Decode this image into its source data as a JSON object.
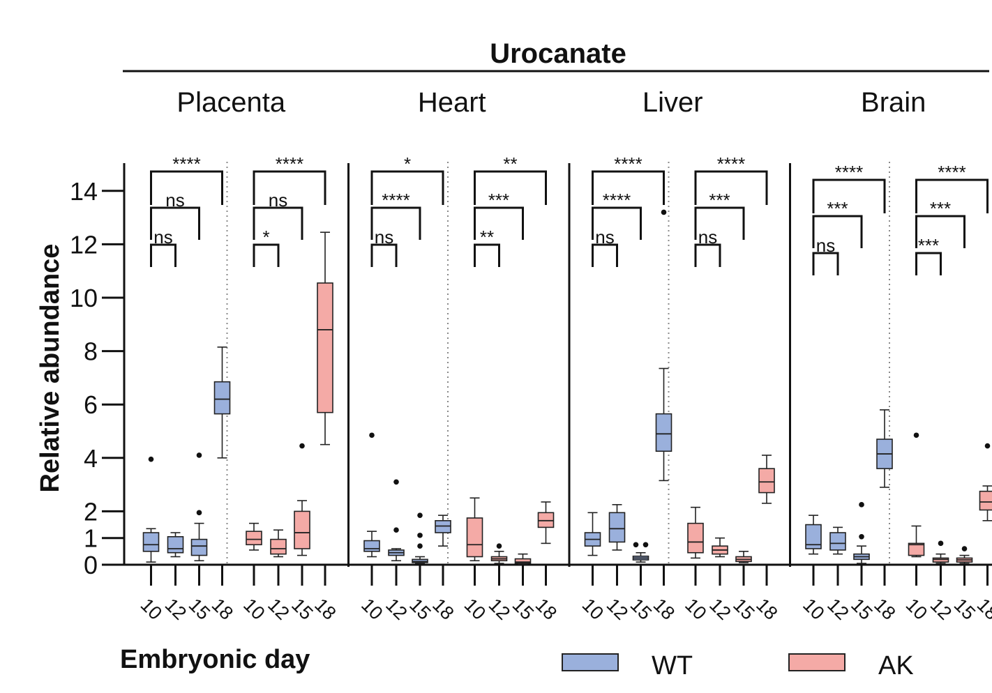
{
  "chart_data": {
    "type": "boxplot",
    "title": "Urocanate",
    "ylabel": "Relative abundance",
    "xlabel": "Embryonic day",
    "ylim": [
      0,
      14.5
    ],
    "yticks": [
      0,
      1,
      2,
      4,
      6,
      8,
      10,
      12,
      14
    ],
    "days": [
      "10",
      "12",
      "15",
      "18"
    ],
    "legend": [
      {
        "name": "WT",
        "color": "#9ab0dc"
      },
      {
        "name": "AK",
        "color": "#f4aaa6"
      }
    ],
    "tissues": [
      {
        "name": "Placenta",
        "groups": [
          {
            "genotype": "WT",
            "boxes": [
              {
                "day": "10",
                "min": 0.1,
                "q1": 0.5,
                "median": 0.75,
                "q3": 1.2,
                "max": 1.35,
                "outliers": [
                  3.95
                ]
              },
              {
                "day": "12",
                "min": 0.3,
                "q1": 0.45,
                "median": 0.6,
                "q3": 1.05,
                "max": 1.2,
                "outliers": []
              },
              {
                "day": "15",
                "min": 0.15,
                "q1": 0.35,
                "median": 0.7,
                "q3": 0.95,
                "max": 1.55,
                "outliers": [
                  1.95,
                  4.1
                ]
              },
              {
                "day": "18",
                "min": 4.0,
                "q1": 5.65,
                "median": 6.2,
                "q3": 6.85,
                "max": 8.15,
                "outliers": []
              }
            ],
            "comparisons": [
              {
                "from": "10",
                "to": "18",
                "label": "****"
              },
              {
                "from": "10",
                "to": "15",
                "label": "ns"
              },
              {
                "from": "10",
                "to": "12",
                "label": "ns"
              }
            ]
          },
          {
            "genotype": "AK",
            "boxes": [
              {
                "day": "10",
                "min": 0.55,
                "q1": 0.75,
                "median": 0.95,
                "q3": 1.25,
                "max": 1.55,
                "outliers": []
              },
              {
                "day": "12",
                "min": 0.3,
                "q1": 0.4,
                "median": 0.6,
                "q3": 0.95,
                "max": 1.3,
                "outliers": []
              },
              {
                "day": "15",
                "min": 0.35,
                "q1": 0.6,
                "median": 1.2,
                "q3": 2.0,
                "max": 2.4,
                "outliers": [
                  4.45
                ]
              },
              {
                "day": "18",
                "min": 4.5,
                "q1": 5.7,
                "median": 8.8,
                "q3": 10.55,
                "max": 12.45,
                "outliers": []
              }
            ],
            "comparisons": [
              {
                "from": "10",
                "to": "18",
                "label": "****"
              },
              {
                "from": "10",
                "to": "15",
                "label": "ns"
              },
              {
                "from": "10",
                "to": "12",
                "label": "*"
              }
            ]
          }
        ]
      },
      {
        "name": "Heart",
        "groups": [
          {
            "genotype": "WT",
            "boxes": [
              {
                "day": "10",
                "min": 0.3,
                "q1": 0.5,
                "median": 0.6,
                "q3": 0.9,
                "max": 1.25,
                "outliers": [
                  4.85
                ]
              },
              {
                "day": "12",
                "min": 0.15,
                "q1": 0.35,
                "median": 0.45,
                "q3": 0.55,
                "max": 0.6,
                "outliers": [
                  1.3,
                  3.1
                ]
              },
              {
                "day": "15",
                "min": 0.05,
                "q1": 0.08,
                "median": 0.12,
                "q3": 0.2,
                "max": 0.3,
                "outliers": [
                  0.7,
                  1.1,
                  1.85
                ]
              },
              {
                "day": "18",
                "min": 0.7,
                "q1": 1.2,
                "median": 1.45,
                "q3": 1.65,
                "max": 1.85,
                "outliers": []
              }
            ],
            "comparisons": [
              {
                "from": "10",
                "to": "18",
                "label": "*"
              },
              {
                "from": "10",
                "to": "15",
                "label": "****"
              },
              {
                "from": "10",
                "to": "12",
                "label": "ns"
              }
            ]
          },
          {
            "genotype": "AK",
            "boxes": [
              {
                "day": "10",
                "min": 0.15,
                "q1": 0.3,
                "median": 0.75,
                "q3": 1.75,
                "max": 2.5,
                "outliers": []
              },
              {
                "day": "12",
                "min": 0.05,
                "q1": 0.15,
                "median": 0.22,
                "q3": 0.3,
                "max": 0.5,
                "outliers": [
                  0.7
                ]
              },
              {
                "day": "15",
                "min": 0.03,
                "q1": 0.06,
                "median": 0.1,
                "q3": 0.22,
                "max": 0.4,
                "outliers": []
              },
              {
                "day": "18",
                "min": 0.8,
                "q1": 1.4,
                "median": 1.65,
                "q3": 1.95,
                "max": 2.35,
                "outliers": []
              }
            ],
            "comparisons": [
              {
                "from": "10",
                "to": "18",
                "label": "**"
              },
              {
                "from": "10",
                "to": "15",
                "label": "***"
              },
              {
                "from": "10",
                "to": "12",
                "label": "**"
              }
            ]
          }
        ]
      },
      {
        "name": "Liver",
        "groups": [
          {
            "genotype": "WT",
            "boxes": [
              {
                "day": "10",
                "min": 0.35,
                "q1": 0.7,
                "median": 0.95,
                "q3": 1.2,
                "max": 1.95,
                "outliers": []
              },
              {
                "day": "12",
                "min": 0.55,
                "q1": 0.85,
                "median": 1.35,
                "q3": 1.95,
                "max": 2.25,
                "outliers": []
              },
              {
                "day": "15",
                "min": 0.1,
                "q1": 0.18,
                "median": 0.25,
                "q3": 0.32,
                "max": 0.45,
                "outliers": [
                  0.75,
                  0.75
                ]
              },
              {
                "day": "18",
                "min": 3.15,
                "q1": 4.25,
                "median": 4.9,
                "q3": 5.65,
                "max": 7.35,
                "outliers": [
                  13.2
                ]
              }
            ],
            "comparisons": [
              {
                "from": "10",
                "to": "18",
                "label": "****"
              },
              {
                "from": "10",
                "to": "15",
                "label": "****"
              },
              {
                "from": "10",
                "to": "12",
                "label": "ns"
              }
            ]
          },
          {
            "genotype": "AK",
            "boxes": [
              {
                "day": "10",
                "min": 0.25,
                "q1": 0.45,
                "median": 0.85,
                "q3": 1.55,
                "max": 2.15,
                "outliers": []
              },
              {
                "day": "12",
                "min": 0.3,
                "q1": 0.4,
                "median": 0.55,
                "q3": 0.7,
                "max": 1.0,
                "outliers": []
              },
              {
                "day": "15",
                "min": 0.08,
                "q1": 0.12,
                "median": 0.2,
                "q3": 0.3,
                "max": 0.5,
                "outliers": []
              },
              {
                "day": "18",
                "min": 2.3,
                "q1": 2.7,
                "median": 3.1,
                "q3": 3.6,
                "max": 4.1,
                "outliers": []
              }
            ],
            "comparisons": [
              {
                "from": "10",
                "to": "18",
                "label": "****"
              },
              {
                "from": "10",
                "to": "15",
                "label": "***"
              },
              {
                "from": "10",
                "to": "12",
                "label": "ns"
              }
            ]
          }
        ]
      },
      {
        "name": "Brain",
        "groups": [
          {
            "genotype": "WT",
            "boxes": [
              {
                "day": "10",
                "min": 0.4,
                "q1": 0.6,
                "median": 0.75,
                "q3": 1.5,
                "max": 1.85,
                "outliers": []
              },
              {
                "day": "12",
                "min": 0.4,
                "q1": 0.55,
                "median": 0.8,
                "q3": 1.2,
                "max": 1.4,
                "outliers": []
              },
              {
                "day": "15",
                "min": 0.05,
                "q1": 0.2,
                "median": 0.3,
                "q3": 0.4,
                "max": 0.7,
                "outliers": [
                  1.05,
                  2.25
                ]
              },
              {
                "day": "18",
                "min": 2.9,
                "q1": 3.6,
                "median": 4.15,
                "q3": 4.7,
                "max": 5.8,
                "outliers": []
              }
            ],
            "comparisons": [
              {
                "from": "10",
                "to": "18",
                "label": "****"
              },
              {
                "from": "10",
                "to": "15",
                "label": "***"
              },
              {
                "from": "10",
                "to": "12",
                "label": "ns"
              }
            ]
          },
          {
            "genotype": "AK",
            "boxes": [
              {
                "day": "10",
                "min": 0.3,
                "q1": 0.35,
                "median": 0.75,
                "q3": 0.8,
                "max": 1.45,
                "outliers": [
                  4.85
                ]
              },
              {
                "day": "12",
                "min": 0.05,
                "q1": 0.1,
                "median": 0.2,
                "q3": 0.25,
                "max": 0.4,
                "outliers": [
                  0.8
                ]
              },
              {
                "day": "15",
                "min": 0.05,
                "q1": 0.1,
                "median": 0.18,
                "q3": 0.25,
                "max": 0.35,
                "outliers": [
                  0.6
                ]
              },
              {
                "day": "18",
                "min": 1.65,
                "q1": 2.05,
                "median": 2.35,
                "q3": 2.75,
                "max": 2.95,
                "outliers": [
                  4.45
                ]
              }
            ],
            "comparisons": [
              {
                "from": "10",
                "to": "18",
                "label": "****"
              },
              {
                "from": "10",
                "to": "15",
                "label": "***"
              },
              {
                "from": "10",
                "to": "12",
                "label": "***"
              }
            ]
          }
        ]
      }
    ]
  }
}
